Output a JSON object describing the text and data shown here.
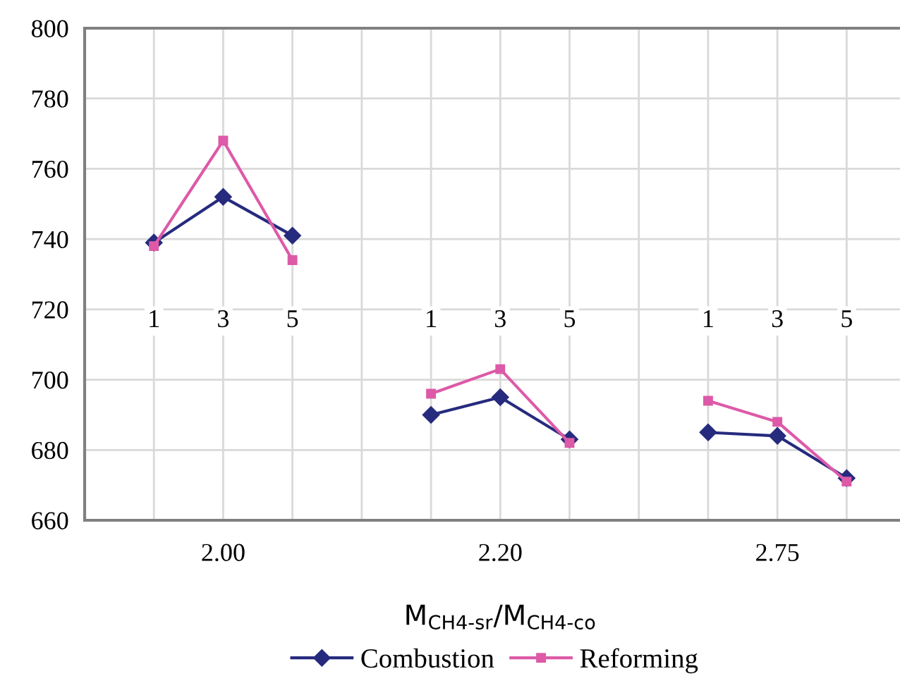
{
  "chart_data": {
    "type": "line",
    "categories": [
      "1",
      "3",
      "5",
      null,
      "1",
      "3",
      "5",
      null,
      "1",
      "3",
      "5"
    ],
    "series": [
      {
        "name": "Combustion",
        "color": "#262b7e",
        "marker": "diamond",
        "values": [
          739,
          752,
          741,
          null,
          690,
          695,
          683,
          null,
          685,
          684,
          672
        ]
      },
      {
        "name": "Reforming",
        "color": "#dd5aa8",
        "marker": "square",
        "values": [
          738,
          768,
          734,
          null,
          696,
          703,
          682,
          null,
          694,
          688,
          671
        ]
      }
    ],
    "annotations": [
      "2.00",
      "2.20",
      "2.75"
    ],
    "xlabel": "M$_{CH4-sr}$/M$_{CH4-co}$",
    "ylim": [
      660,
      800
    ],
    "yticks": [
      660,
      680,
      700,
      720,
      740,
      760,
      780,
      800
    ],
    "grid": true,
    "legend": "bottom",
    "line_style": "solid"
  }
}
